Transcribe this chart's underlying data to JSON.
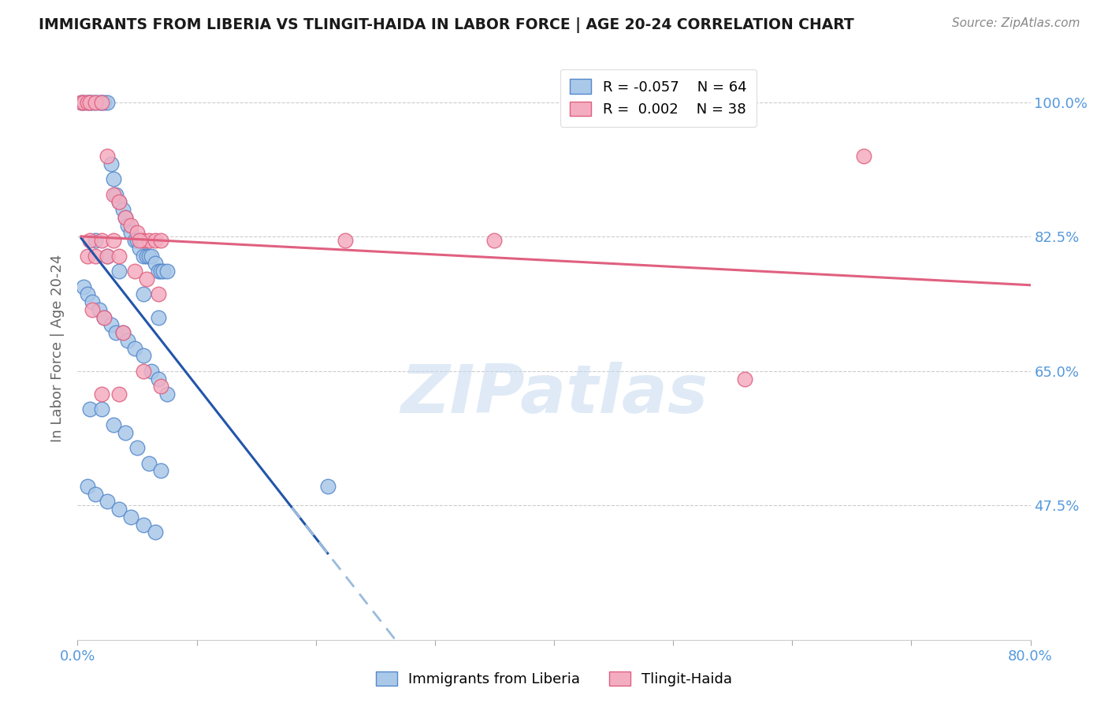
{
  "title": "IMMIGRANTS FROM LIBERIA VS TLINGIT-HAIDA IN LABOR FORCE | AGE 20-24 CORRELATION CHART",
  "source": "Source: ZipAtlas.com",
  "ylabel": "In Labor Force | Age 20-24",
  "xlim": [
    0.0,
    0.8
  ],
  "ylim": [
    0.3,
    1.06
  ],
  "yticks": [
    0.475,
    0.65,
    0.825,
    1.0
  ],
  "ytick_labels": [
    "47.5%",
    "65.0%",
    "82.5%",
    "100.0%"
  ],
  "xticks": [
    0.0,
    0.1,
    0.2,
    0.3,
    0.4,
    0.5,
    0.6,
    0.7,
    0.8
  ],
  "xtick_labels": [
    "0.0%",
    "",
    "",
    "",
    "",
    "",
    "",
    "",
    "80.0%"
  ],
  "liberia_color": "#aac8e8",
  "tlingit_color": "#f4adc0",
  "liberia_edge_color": "#5588cc",
  "tlingit_edge_color": "#e06080",
  "liberia_trend_solid_color": "#2255aa",
  "tlingit_trend_color": "#e06080",
  "liberia_trend_dash_color": "#99bbdd",
  "axis_tick_color": "#5599dd",
  "R_liberia": -0.057,
  "N_liberia": 64,
  "R_tlingit": 0.002,
  "N_tlingit": 38,
  "liberia_x": [
    0.003,
    0.005,
    0.008,
    0.01,
    0.012,
    0.015,
    0.018,
    0.02,
    0.022,
    0.025,
    0.028,
    0.03,
    0.032,
    0.035,
    0.038,
    0.04,
    0.042,
    0.045,
    0.048,
    0.05,
    0.052,
    0.055,
    0.058,
    0.06,
    0.062,
    0.065,
    0.068,
    0.07,
    0.072,
    0.075,
    0.005,
    0.008,
    0.012,
    0.018,
    0.022,
    0.028,
    0.032,
    0.038,
    0.042,
    0.048,
    0.055,
    0.062,
    0.068,
    0.075,
    0.01,
    0.02,
    0.03,
    0.04,
    0.05,
    0.06,
    0.07,
    0.008,
    0.015,
    0.025,
    0.035,
    0.045,
    0.055,
    0.065,
    0.015,
    0.025,
    0.035,
    0.055,
    0.068,
    0.21
  ],
  "liberia_y": [
    1.0,
    1.0,
    1.0,
    1.0,
    1.0,
    1.0,
    1.0,
    1.0,
    1.0,
    1.0,
    0.92,
    0.9,
    0.88,
    0.87,
    0.86,
    0.85,
    0.84,
    0.83,
    0.82,
    0.82,
    0.81,
    0.8,
    0.8,
    0.8,
    0.8,
    0.79,
    0.78,
    0.78,
    0.78,
    0.78,
    0.76,
    0.75,
    0.74,
    0.73,
    0.72,
    0.71,
    0.7,
    0.7,
    0.69,
    0.68,
    0.67,
    0.65,
    0.64,
    0.62,
    0.6,
    0.6,
    0.58,
    0.57,
    0.55,
    0.53,
    0.52,
    0.5,
    0.49,
    0.48,
    0.47,
    0.46,
    0.45,
    0.44,
    0.82,
    0.8,
    0.78,
    0.75,
    0.72,
    0.5
  ],
  "tlingit_x": [
    0.003,
    0.005,
    0.008,
    0.01,
    0.015,
    0.02,
    0.025,
    0.03,
    0.035,
    0.04,
    0.045,
    0.05,
    0.055,
    0.06,
    0.065,
    0.07,
    0.008,
    0.015,
    0.025,
    0.035,
    0.048,
    0.058,
    0.068,
    0.012,
    0.022,
    0.038,
    0.055,
    0.07,
    0.01,
    0.02,
    0.03,
    0.052,
    0.02,
    0.035,
    0.225,
    0.35,
    0.56,
    0.66
  ],
  "tlingit_y": [
    1.0,
    1.0,
    1.0,
    1.0,
    1.0,
    1.0,
    0.93,
    0.88,
    0.87,
    0.85,
    0.84,
    0.83,
    0.82,
    0.82,
    0.82,
    0.82,
    0.8,
    0.8,
    0.8,
    0.8,
    0.78,
    0.77,
    0.75,
    0.73,
    0.72,
    0.7,
    0.65,
    0.63,
    0.82,
    0.82,
    0.82,
    0.82,
    0.62,
    0.62,
    0.82,
    0.82,
    0.64,
    0.93
  ],
  "watermark_text": "ZIPatlas",
  "legend_border_color": "#dddddd",
  "background_color": "#ffffff",
  "grid_color": "#cccccc",
  "grid_style": "--",
  "liberia_trend_solid_xrange": [
    0.003,
    0.21
  ],
  "liberia_trend_dash_xrange": [
    0.18,
    0.8
  ],
  "tlingit_trend_xrange": [
    0.003,
    0.8
  ]
}
